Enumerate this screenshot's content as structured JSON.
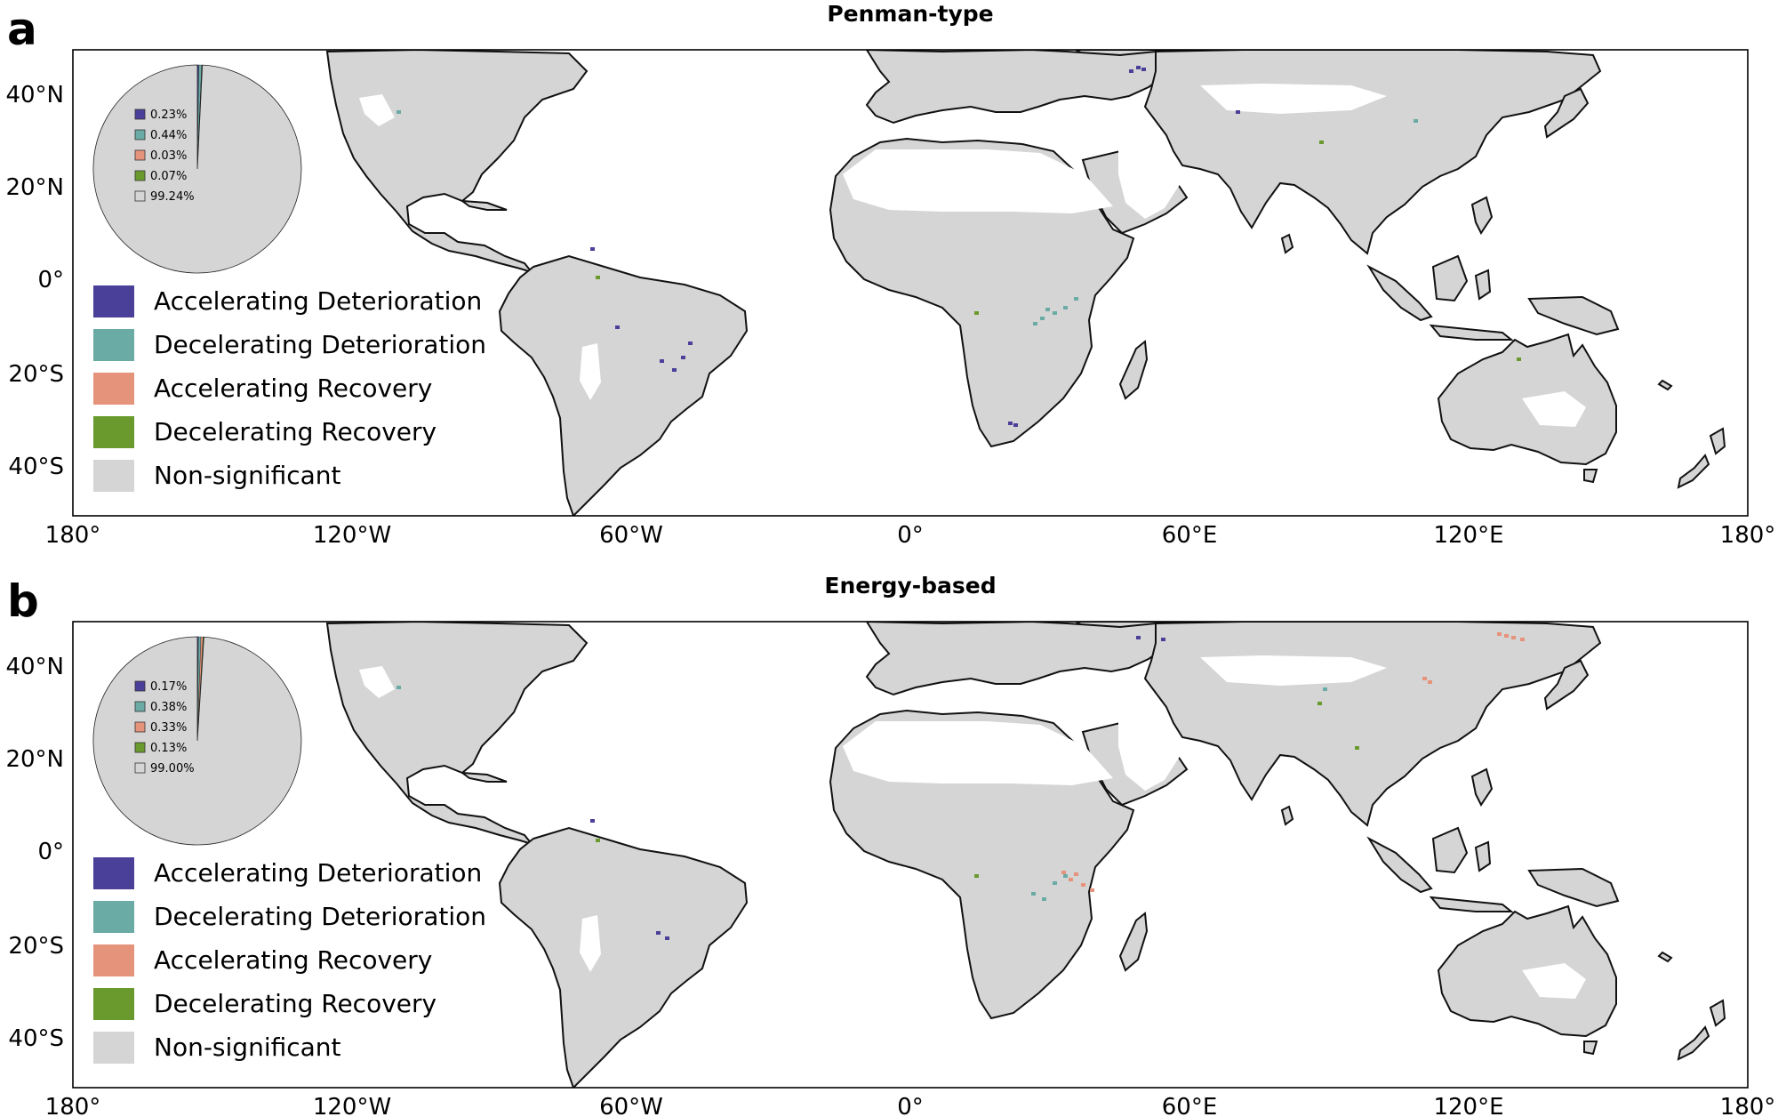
{
  "legend": {
    "items": [
      {
        "label": "Accelerating Deterioration",
        "color": "#4a3f99"
      },
      {
        "label": "Decelerating Deterioration",
        "color": "#6aaba6"
      },
      {
        "label": "Accelerating Recovery",
        "color": "#e6937b"
      },
      {
        "label": "Decelerating Recovery",
        "color": "#6a9a2e"
      },
      {
        "label": "Non-significant",
        "color": "#d5d5d5"
      }
    ]
  },
  "axes": {
    "y_ticks": [
      "40°N",
      "20°N",
      "0°",
      "20°S",
      "40°S"
    ],
    "x_ticks": [
      "180°",
      "120°W",
      "60°W",
      "0°",
      "60°E",
      "120°E",
      "180°"
    ]
  },
  "panels": [
    {
      "letter": "a",
      "title": "Penman-type",
      "pie": {
        "labels": [
          "0.23%",
          "0.44%",
          "0.03%",
          "0.07%",
          "99.24%"
        ],
        "values": [
          0.23,
          0.44,
          0.03,
          0.07,
          99.24
        ]
      }
    },
    {
      "letter": "b",
      "title": "Energy-based",
      "pie": {
        "labels": [
          "0.17%",
          "0.38%",
          "0.33%",
          "0.13%",
          "99.00%"
        ],
        "values": [
          0.17,
          0.38,
          0.33,
          0.13,
          99.0
        ]
      }
    }
  ],
  "colors": {
    "land": "#d5d5d5",
    "coast": "#111111",
    "frame": "#000000"
  }
}
